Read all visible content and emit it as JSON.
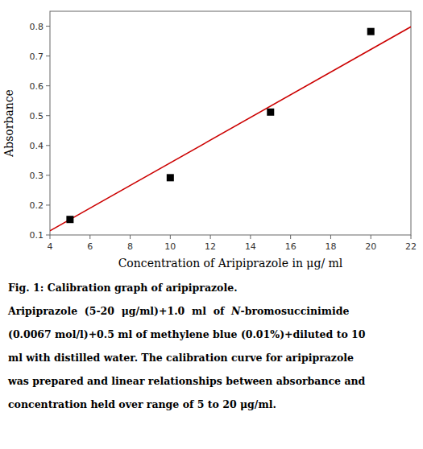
{
  "chart_data": {
    "type": "scatter",
    "title": "Fig. 1: Calibration graph of aripiprazole.",
    "annotations": [
      [
        "Aripiprazole  (5-20  μg/ml)+1.0  ml  of  ",
        "N",
        "-bromosuccinimide"
      ],
      "(0.0067 mol/l)+0.5 ml of methylene blue (0.01%)+diluted to 10",
      "ml with distilled water. The calibration curve for aripiprazole",
      "was prepared and linear relationships between absorbance and",
      "concentration held over range of 5 to 20 μg/ml."
    ],
    "xlabel": "Concentration of Aripiprazole in μg/ ml",
    "ylabel": "Absorbance",
    "xlim": [
      4,
      22
    ],
    "ylim": [
      0.1,
      0.85
    ],
    "xticks": [
      4,
      6,
      8,
      10,
      12,
      14,
      16,
      18,
      20,
      22
    ],
    "yticks": [
      0.1,
      0.2,
      0.3,
      0.4,
      0.5,
      0.6,
      0.7,
      0.8
    ],
    "grid": false,
    "series": [
      {
        "type": "line",
        "color": "#cc0000",
        "x": [
          4,
          22
        ],
        "values": [
          0.114,
          0.798
        ]
      },
      {
        "type": "scatter",
        "color": "#000000",
        "marker": "square",
        "x": [
          5,
          10,
          15,
          20
        ],
        "values": [
          0.152,
          0.292,
          0.512,
          0.782
        ]
      }
    ]
  }
}
